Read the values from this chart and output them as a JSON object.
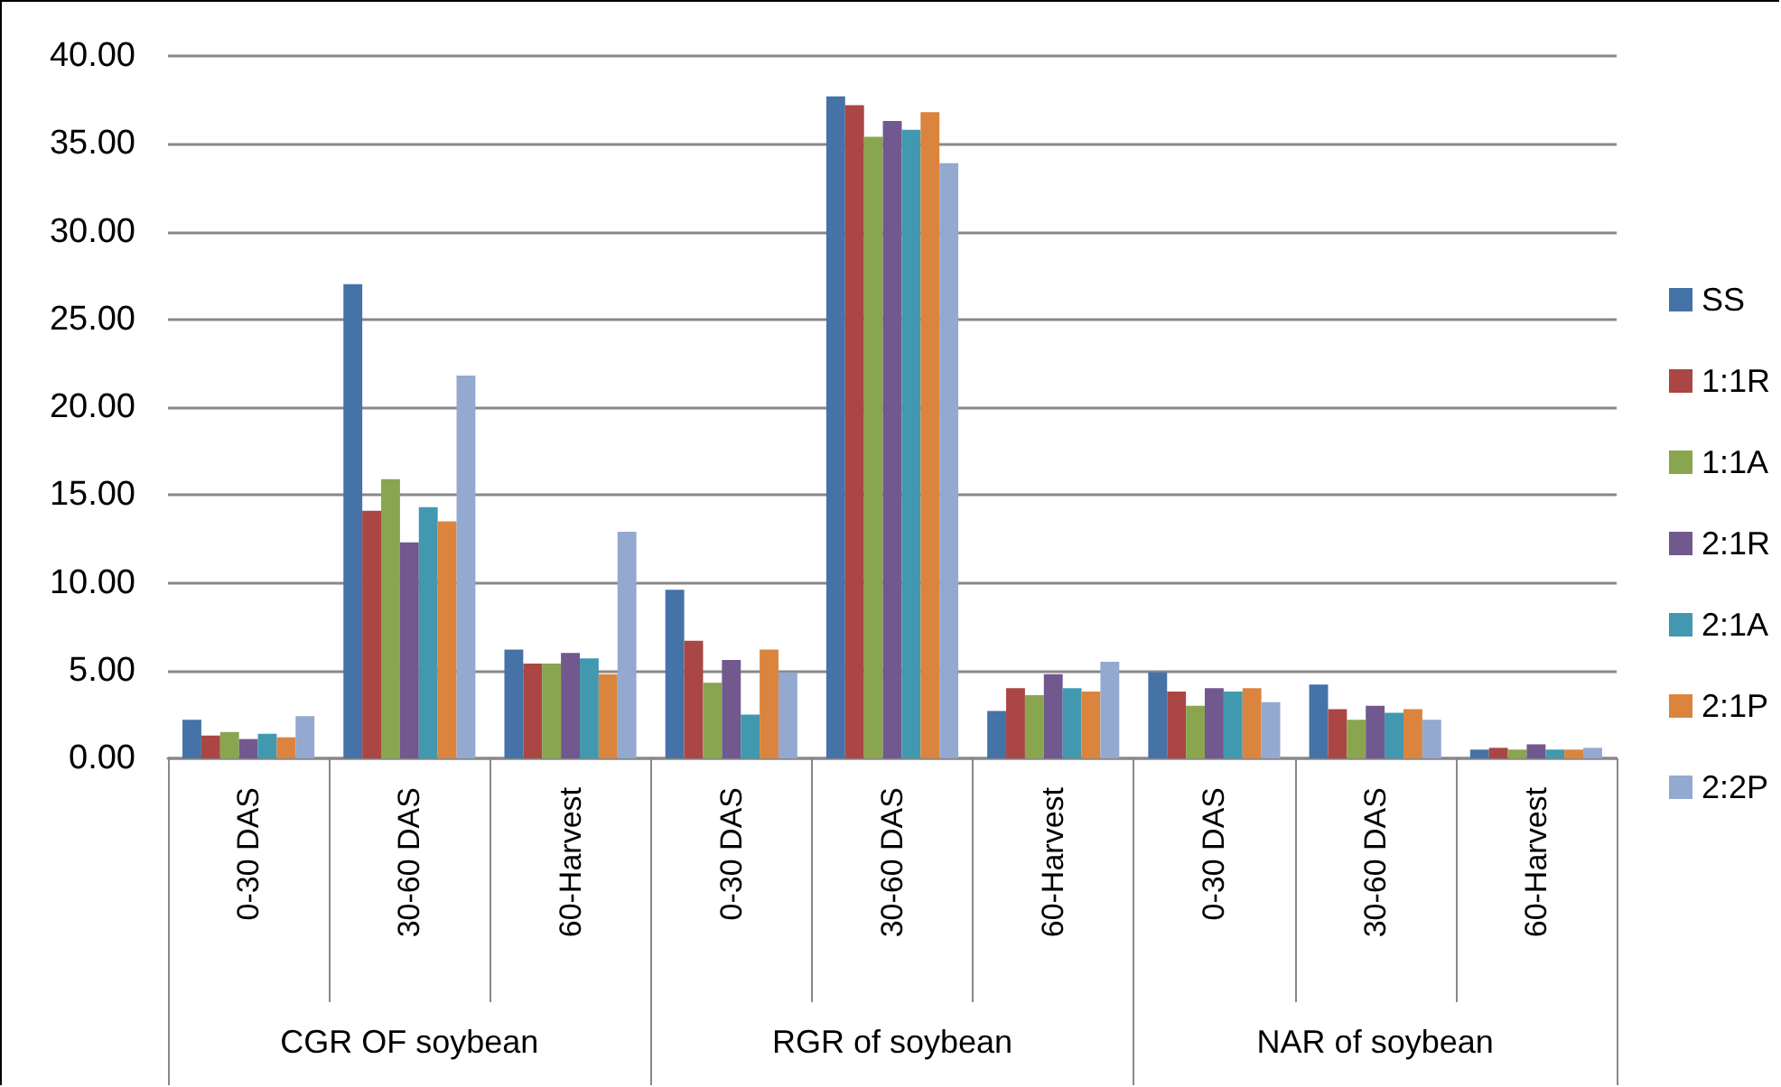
{
  "chart_data": {
    "type": "bar",
    "categories": [
      "0-30 DAS",
      "30-60 DAS",
      "60-Harvest",
      "0-30 DAS",
      "30-60 DAS",
      "60-Harvest",
      "0-30 DAS",
      "30-60 DAS",
      "60-Harvest"
    ],
    "annotations": [
      "CGR OF soybean",
      "RGR of soybean",
      "NAR of soybean"
    ],
    "series": [
      {
        "name": "SS",
        "color": "#4572a7",
        "values": [
          2.2,
          27.0,
          6.2,
          9.6,
          37.7,
          2.7,
          4.9,
          4.2,
          0.5
        ]
      },
      {
        "name": "1:1R",
        "color": "#aa4643",
        "values": [
          1.3,
          14.1,
          5.4,
          6.7,
          37.2,
          4.0,
          3.8,
          2.8,
          0.6
        ]
      },
      {
        "name": "1:1A",
        "color": "#89a54e",
        "values": [
          1.5,
          15.9,
          5.4,
          4.3,
          35.4,
          3.6,
          3.0,
          2.2,
          0.5
        ]
      },
      {
        "name": "2:1R",
        "color": "#71588f",
        "values": [
          1.1,
          12.3,
          6.0,
          5.6,
          36.3,
          4.8,
          4.0,
          3.0,
          0.8
        ]
      },
      {
        "name": "2:1A",
        "color": "#4198af",
        "values": [
          1.4,
          14.3,
          5.7,
          2.5,
          35.8,
          4.0,
          3.8,
          2.6,
          0.5
        ]
      },
      {
        "name": "2:1P",
        "color": "#db843d",
        "values": [
          1.2,
          13.5,
          4.8,
          6.2,
          36.8,
          3.8,
          4.0,
          2.8,
          0.5
        ]
      },
      {
        "name": "2:2P",
        "color": "#93a9cf",
        "values": [
          2.4,
          21.8,
          12.9,
          4.9,
          33.9,
          5.5,
          3.2,
          2.2,
          0.6
        ]
      }
    ],
    "ylim": [
      0,
      40
    ],
    "yticks": [
      {
        "value": 0,
        "label": "0.00"
      },
      {
        "value": 5,
        "label": "5.00"
      },
      {
        "value": 10,
        "label": "10.00"
      },
      {
        "value": 15,
        "label": "15.00"
      },
      {
        "value": 20,
        "label": "20.00"
      },
      {
        "value": 25,
        "label": "25.00"
      },
      {
        "value": 30,
        "label": "30.00"
      },
      {
        "value": 35,
        "label": "35.00"
      },
      {
        "value": 40,
        "label": "40.00"
      }
    ],
    "grid": "y",
    "legend": "right"
  }
}
